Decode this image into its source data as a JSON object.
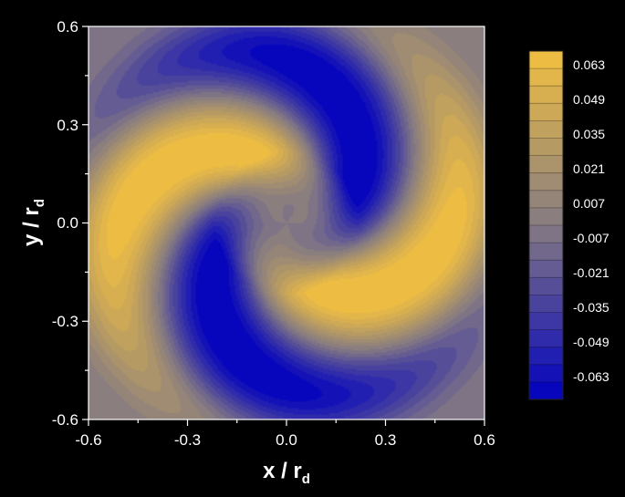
{
  "chart_data": {
    "type": "heatmap",
    "title": "",
    "xlabel": "x / r",
    "xlabel_sub": "d",
    "ylabel": "y / r",
    "ylabel_sub": "d",
    "xlim": [
      -0.6,
      0.6
    ],
    "ylim": [
      -0.6,
      0.6
    ],
    "x_ticks": [
      "-0.6",
      "-0.3",
      "0.0",
      "0.3",
      "0.6"
    ],
    "y_ticks": [
      "0.6",
      "0.3",
      "0.0",
      "-0.3",
      "-0.6"
    ],
    "pattern": "two-armed spiral",
    "colorbar": {
      "labels": [
        "0.063",
        "0.049",
        "0.035",
        "0.021",
        "0.007",
        "-0.007",
        "-0.021",
        "-0.035",
        "-0.049",
        "-0.063"
      ],
      "levels": [
        0.07,
        0.063,
        0.056,
        0.049,
        0.042,
        0.035,
        0.028,
        0.021,
        0.014,
        0.007,
        0.0,
        -0.007,
        -0.014,
        -0.021,
        -0.028,
        -0.035,
        -0.042,
        -0.049,
        -0.056,
        -0.063,
        -0.07
      ],
      "color_max": "#f2c040",
      "color_mid": "#857a82",
      "color_min": "#0000c0"
    }
  }
}
